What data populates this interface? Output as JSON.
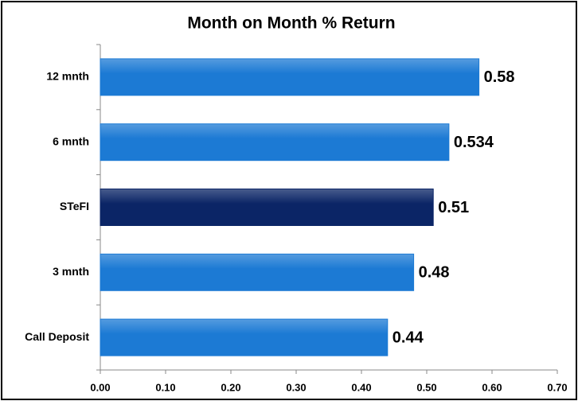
{
  "chart_data": {
    "type": "barh",
    "title": "Month on Month % Return",
    "categories": [
      "12 mnth",
      "6 mnth",
      "STeFI",
      "3 mnth",
      "Call Deposit"
    ],
    "values": [
      0.58,
      0.534,
      0.51,
      0.48,
      0.44
    ],
    "colors": [
      "#1c7ad4",
      "#1c7ad4",
      "#0b2566",
      "#1c7ad4",
      "#1c7ad4"
    ],
    "xlim": [
      0,
      0.7
    ],
    "xticks": [
      {
        "value": 0,
        "label": "0.00"
      },
      {
        "value": 0.1,
        "label": "0.10"
      },
      {
        "value": 0.2,
        "label": "0.20"
      },
      {
        "value": 0.3,
        "label": "0.30"
      },
      {
        "value": 0.4,
        "label": "0.40"
      },
      {
        "value": 0.5,
        "label": "0.50"
      },
      {
        "value": 0.6,
        "label": "0.60"
      },
      {
        "value": 0.7,
        "label": "0.70"
      }
    ],
    "grid": false
  }
}
